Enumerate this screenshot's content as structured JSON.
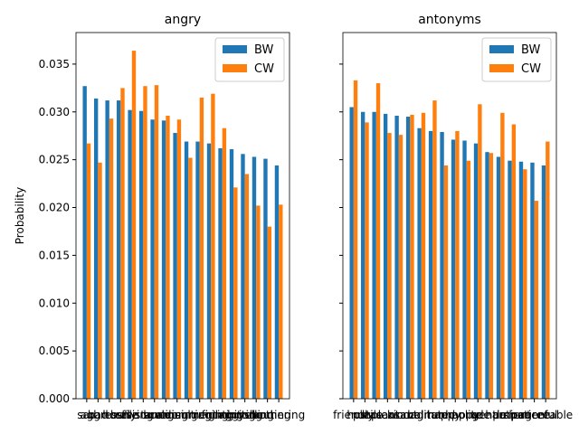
{
  "chart_data": [
    {
      "type": "bar",
      "title": "angry",
      "y_label": "Probability",
      "categories": [
        "sad",
        "bad",
        "aggressive",
        "hostile",
        "bullying",
        "resistance",
        "hurt",
        "scolding",
        "arguing",
        "insulting",
        "commenting",
        "raging",
        "fighting",
        "nagging",
        "hitting",
        "yelling",
        "shouting",
        "bothering"
      ],
      "series": [
        {
          "name": "BW",
          "color": "#1f77b4",
          "values": [
            0.0327,
            0.0314,
            0.0312,
            0.0312,
            0.0302,
            0.0301,
            0.0292,
            0.0291,
            0.0278,
            0.0269,
            0.0269,
            0.0267,
            0.0262,
            0.0261,
            0.0256,
            0.0253,
            0.0251,
            0.0244
          ]
        },
        {
          "name": "CW",
          "color": "#ff7f0e",
          "values": [
            0.0267,
            0.0247,
            0.0293,
            0.0325,
            0.0364,
            0.0327,
            0.0328,
            0.0296,
            0.0292,
            0.0252,
            0.0315,
            0.0319,
            0.0283,
            0.0221,
            0.0235,
            0.0202,
            0.018,
            0.0203
          ]
        }
      ],
      "ylim": [
        0,
        0.0383
      ],
      "yticks": [
        {
          "value": 0,
          "label": "0.000"
        },
        {
          "value": 0.005,
          "label": "0.005"
        },
        {
          "value": 0.01,
          "label": "0.010"
        },
        {
          "value": 0.015,
          "label": "0.015"
        },
        {
          "value": 0.02,
          "label": "0.020"
        },
        {
          "value": 0.025,
          "label": "0.025"
        },
        {
          "value": 0.03,
          "label": "0.030"
        },
        {
          "value": 0.035,
          "label": "0.035"
        }
      ],
      "legend": "upper right"
    },
    {
      "type": "bar",
      "title": "antonyms",
      "categories": [
        "friendly",
        "hostile",
        "pleasant",
        "unpleasant",
        "kind",
        "cruel",
        "calm",
        "agitated",
        "happy",
        "unhappy",
        "polite",
        "rude",
        "gentle",
        "harsh",
        "patient",
        "impatient",
        "peaceful",
        "agreeable"
      ],
      "series": [
        {
          "name": "BW",
          "color": "#1f77b4",
          "values": [
            0.0305,
            0.03,
            0.03,
            0.0298,
            0.0296,
            0.0295,
            0.0283,
            0.028,
            0.0279,
            0.0271,
            0.027,
            0.0267,
            0.0258,
            0.0253,
            0.0249,
            0.0248,
            0.0247,
            0.0244
          ]
        },
        {
          "name": "CW",
          "color": "#ff7f0e",
          "values": [
            0.0333,
            0.0289,
            0.033,
            0.0278,
            0.0276,
            0.0297,
            0.0299,
            0.0312,
            0.0244,
            0.028,
            0.0249,
            0.0308,
            0.0257,
            0.0299,
            0.0287,
            0.024,
            0.0207,
            0.0269
          ]
        }
      ],
      "ylim": [
        0,
        0.0383
      ],
      "yticks": [
        0,
        0.005,
        0.01,
        0.015,
        0.02,
        0.025,
        0.03,
        0.035
      ],
      "show_ytick_labels": false,
      "legend": "upper right"
    }
  ]
}
